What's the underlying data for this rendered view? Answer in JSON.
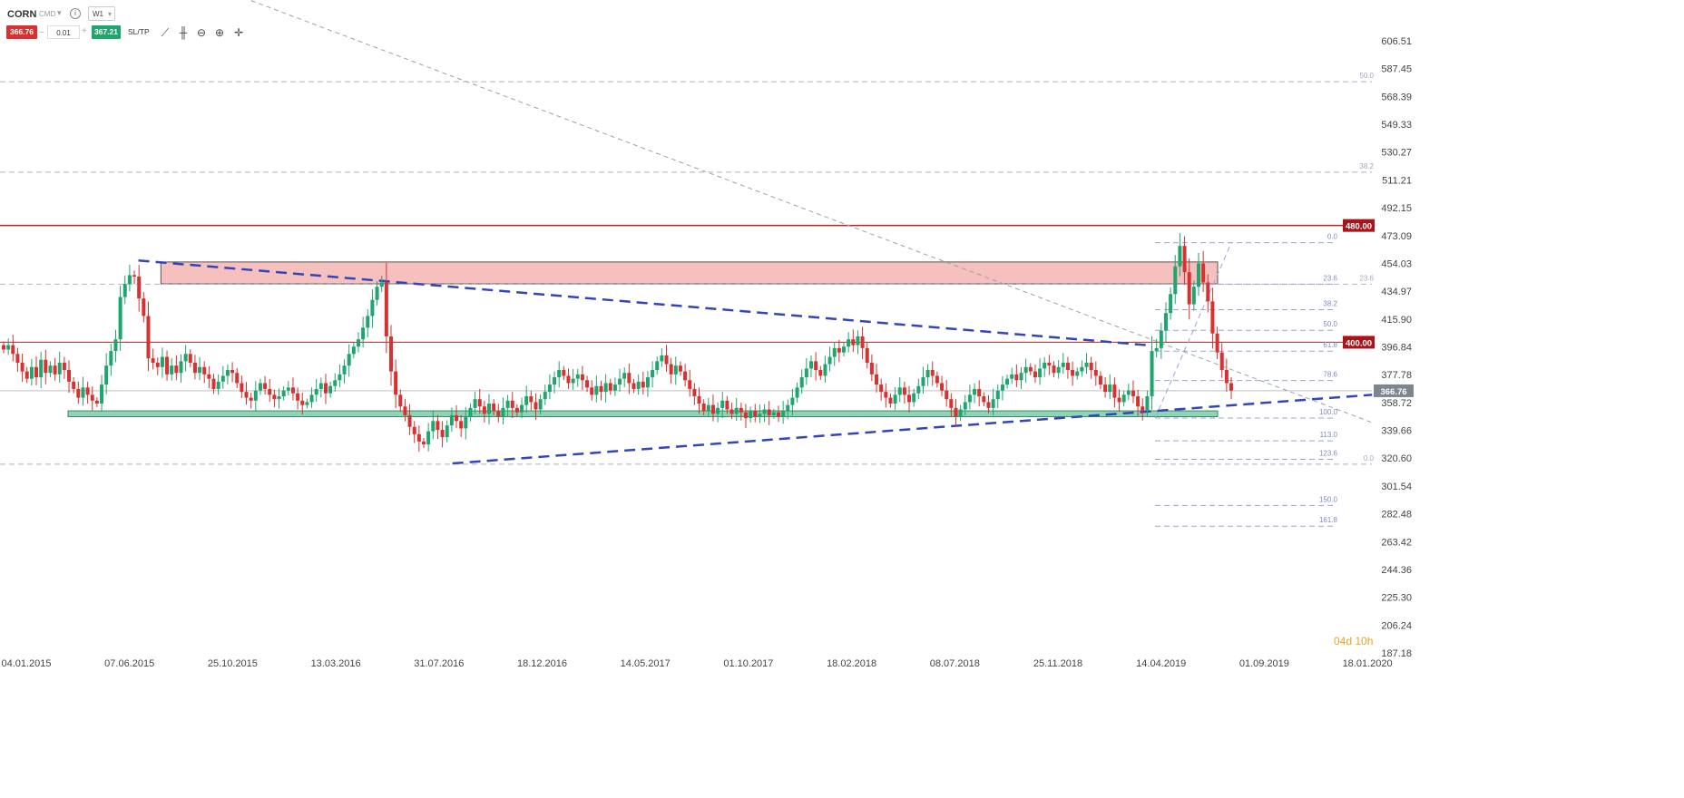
{
  "header": {
    "symbol": "CORN",
    "market": "CMD",
    "timeframe": "W1",
    "sell_price": "366.76",
    "quantity": "0.01",
    "buy_price": "367.21",
    "sltp_label": "SL/TP",
    "minus": "–",
    "plus": "+",
    "info": "i",
    "caret": "▾"
  },
  "tools": [
    {
      "name": "line-chart-icon",
      "glyph": "⟋"
    },
    {
      "name": "candles-icon",
      "glyph": "╫"
    },
    {
      "name": "zoom-out-icon",
      "glyph": "⊖"
    },
    {
      "name": "zoom-in-icon",
      "glyph": "⊕"
    },
    {
      "name": "crosshair-icon",
      "glyph": "✛"
    }
  ],
  "countdown": {
    "days": "04d",
    "hours": "10h"
  },
  "colors": {
    "bull": "#1fa56e",
    "bear": "#d8312f",
    "trend": "#3346b8",
    "fib": "#9aa5d6",
    "resistance": "#c0201e",
    "zone_red": "#f4b5b3",
    "zone_green": "#8fd4b6"
  },
  "chart_data": {
    "type": "candlestick",
    "symbol": "CORN",
    "timeframe": "W1",
    "current_price": 366.76,
    "ylim": [
      187.18,
      620
    ],
    "y_ticks": [
      "606.51",
      "587.45",
      "568.39",
      "549.33",
      "530.27",
      "511.21",
      "492.15",
      "473.09",
      "454.03",
      "434.97",
      "415.90",
      "396.84",
      "377.78",
      "358.72",
      "339.66",
      "320.60",
      "301.54",
      "282.48",
      "263.42",
      "244.36",
      "225.30",
      "206.24",
      "187.18"
    ],
    "x_ticks": [
      "04.01.2015",
      "07.06.2015",
      "25.10.2015",
      "13.03.2016",
      "31.07.2016",
      "18.12.2016",
      "14.05.2017",
      "01.10.2017",
      "18.02.2018",
      "08.07.2018",
      "25.11.2018",
      "14.04.2019",
      "01.09.2019",
      "18.01.2020"
    ],
    "price_labels": [
      {
        "value": 480.0,
        "text": "480.00"
      },
      {
        "value": 400.0,
        "text": "400.00"
      },
      {
        "value": 366.76,
        "text": "366.76"
      }
    ],
    "fib_levels_long": [
      {
        "label": "50.0",
        "value": 578.5
      },
      {
        "label": "38.2",
        "value": 516.5
      },
      {
        "label": "23.6",
        "value": 439.8
      },
      {
        "label": "0.0",
        "value": 316.5
      }
    ],
    "fib_levels_recent": [
      {
        "label": "0.0",
        "value": 468.2
      },
      {
        "label": "23.6",
        "value": 439.8
      },
      {
        "label": "38.2",
        "value": 422.3
      },
      {
        "label": "50.0",
        "value": 408.2
      },
      {
        "label": "61.8",
        "value": 393.9
      },
      {
        "label": "78.6",
        "value": 373.8
      },
      {
        "label": "100.0",
        "value": 348.1
      },
      {
        "label": "113.0",
        "value": 332.5
      },
      {
        "label": "123.6",
        "value": 319.8
      },
      {
        "label": "150.0",
        "value": 288.2
      },
      {
        "label": "161.8",
        "value": 274.0
      }
    ],
    "zones": [
      {
        "name": "resistance",
        "from": 440,
        "to": 455,
        "start": "07.2015",
        "end": "07.2019"
      },
      {
        "name": "support",
        "from": 349,
        "to": 353,
        "start": "04.2015",
        "end": "07.2019"
      }
    ],
    "candles_close": [
      395,
      398,
      392,
      386,
      380,
      375,
      383,
      376,
      388,
      379,
      384,
      378,
      386,
      381,
      373,
      368,
      362,
      369,
      364,
      360,
      358,
      371,
      384,
      394,
      402,
      431,
      440,
      446,
      445,
      430,
      418,
      389,
      386,
      383,
      390,
      378,
      384,
      379,
      387,
      392,
      386,
      379,
      383,
      378,
      375,
      368,
      373,
      377,
      381,
      379,
      372,
      366,
      362,
      360,
      367,
      372,
      368,
      364,
      361,
      363,
      367,
      369,
      365,
      360,
      357,
      359,
      364,
      368,
      372,
      365,
      370,
      374,
      378,
      384,
      392,
      397,
      402,
      410,
      418,
      429,
      438,
      441,
      404,
      380,
      364,
      356,
      350,
      342,
      337,
      332,
      330,
      339,
      346,
      340,
      335,
      343,
      350,
      346,
      341,
      349,
      355,
      361,
      356,
      351,
      358,
      353,
      349,
      355,
      360,
      355,
      352,
      357,
      363,
      359,
      354,
      361,
      366,
      371,
      376,
      381,
      377,
      372,
      375,
      378,
      374,
      369,
      364,
      370,
      366,
      372,
      367,
      371,
      375,
      379,
      372,
      368,
      373,
      369,
      376,
      381,
      387,
      391,
      385,
      378,
      384,
      380,
      374,
      368,
      363,
      358,
      353,
      357,
      351,
      355,
      360,
      354,
      351,
      355,
      352,
      348,
      353,
      349,
      351,
      354,
      350,
      352,
      349,
      353,
      357,
      362,
      369,
      376,
      382,
      387,
      381,
      377,
      385,
      390,
      396,
      393,
      397,
      402,
      398,
      404,
      396,
      386,
      378,
      371,
      366,
      362,
      358,
      364,
      369,
      364,
      359,
      365,
      370,
      376,
      381,
      377,
      372,
      367,
      361,
      355,
      349,
      354,
      359,
      364,
      368,
      363,
      359,
      355,
      361,
      367,
      371,
      375,
      378,
      374,
      379,
      383,
      380,
      376,
      382,
      386,
      384,
      379,
      383,
      386,
      381,
      377,
      380,
      383,
      386,
      381,
      377,
      371,
      366,
      371,
      362,
      359,
      364,
      367,
      363,
      356,
      353,
      363,
      394,
      396,
      408,
      420,
      433,
      452,
      466,
      448,
      426,
      438,
      454,
      441,
      428,
      406,
      393,
      381,
      372,
      367
    ],
    "trend_lines": [
      {
        "name": "down-trend",
        "from": {
          "date": "06.2015",
          "price": 456
        },
        "to": {
          "date": "03.2019",
          "price": 398
        }
      },
      {
        "name": "up-trend",
        "from": {
          "date": "08.2016",
          "price": 317
        },
        "to": {
          "date": "01.2020",
          "price": 364
        }
      },
      {
        "name": "long-term-down",
        "from": {
          "date": "10.2015",
          "price": 640
        },
        "to": {
          "date": "01.2020",
          "price": 345
        }
      }
    ]
  }
}
